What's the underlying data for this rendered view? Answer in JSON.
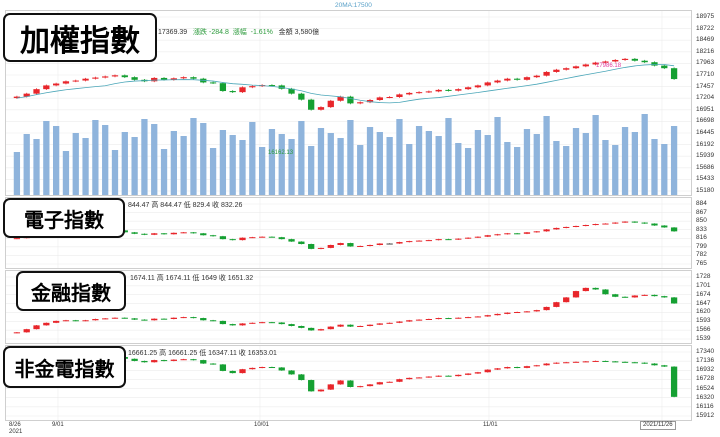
{
  "legend": "20MA:17500",
  "main": {
    "title": "加權指數",
    "info": {
      "close": "17369.39",
      "change_label": "漲跌",
      "change": "-284.8",
      "pct_label": "漲幅",
      "pct": "-1.61%",
      "vol_label": "金額",
      "vol": "3,580億"
    },
    "axis": [
      "18975",
      "18722",
      "18469",
      "18216",
      "17963",
      "17710",
      "17457",
      "17204",
      "16951",
      "16698",
      "16445",
      "16192",
      "15939",
      "15686",
      "15433",
      "15180"
    ],
    "max_label": "17986.18",
    "min_label": "16162.13"
  },
  "elec": {
    "title": "電子指數",
    "info": "844.47 高 844.47 低 829.4 收 832.26",
    "axis": [
      "884",
      "867",
      "850",
      "833",
      "816",
      "799",
      "782",
      "765"
    ]
  },
  "fin": {
    "title": "金融指數",
    "info": "1674.11 高 1674.11 低 1649 收 1651.32",
    "axis": [
      "1728",
      "1701",
      "1674",
      "1647",
      "1620",
      "1593",
      "1566",
      "1539"
    ]
  },
  "nonfe": {
    "title": "非金電指數",
    "info": "16661.25 高 16661.25 低 16347.11 收 16353.01",
    "axis": [
      "17340",
      "17136",
      "16932",
      "16728",
      "16524",
      "16320",
      "16116",
      "15912"
    ]
  },
  "xaxis": {
    "d1": "8/26",
    "y1": "2021",
    "d2": "9/01",
    "d3": "10/01",
    "d4": "11/01",
    "d5": "2021/11/26"
  },
  "colors": {
    "up": "#e8262b",
    "down": "#15a032",
    "flat": "#444444",
    "volume": "#8fb4dc",
    "ma": "#4aa6b8"
  },
  "chart_data": [
    {
      "type": "candlestick",
      "title": "加權指數",
      "ylim": [
        15180,
        18975
      ],
      "series": [
        {
          "name": "20MA",
          "values": [
            17500
          ]
        }
      ],
      "close": [
        16900,
        16980,
        17100,
        17200,
        17250,
        17310,
        17330,
        17380,
        17410,
        17440,
        17470,
        17420,
        17350,
        17310,
        17400,
        17350,
        17390,
        17420,
        17380,
        17280,
        17260,
        17050,
        17020,
        17150,
        17180,
        17210,
        17200,
        17110,
        16980,
        16820,
        16550,
        16620,
        16790,
        16900,
        16720,
        16750,
        16810,
        16880,
        16890,
        16960,
        17000,
        17020,
        17040,
        17080,
        17060,
        17100,
        17150,
        17200,
        17280,
        17330,
        17380,
        17350,
        17420,
        17460,
        17560,
        17620,
        17660,
        17710,
        17760,
        17810,
        17840,
        17880,
        17910,
        17860,
        17820,
        17730,
        17660,
        17370
      ],
      "annotations": [
        "17986.18",
        "16162.13"
      ]
    },
    {
      "type": "candlestick",
      "title": "電子指數",
      "ylim": [
        765,
        884
      ],
      "close": [
        818,
        820,
        822,
        824,
        826,
        828,
        830,
        831,
        832,
        833,
        834,
        830,
        827,
        825,
        828,
        826,
        829,
        830,
        828,
        824,
        822,
        816,
        814,
        819,
        820,
        821,
        820,
        816,
        811,
        806,
        796,
        798,
        804,
        808,
        801,
        802,
        804,
        807,
        807,
        810,
        812,
        813,
        814,
        816,
        815,
        817,
        819,
        821,
        824,
        826,
        828,
        827,
        830,
        832,
        836,
        839,
        841,
        843,
        845,
        847,
        848,
        850,
        852,
        850,
        848,
        844,
        840,
        832
      ]
    },
    {
      "type": "candlestick",
      "title": "金融指數",
      "ylim": [
        1539,
        1728
      ],
      "close": [
        1560,
        1570,
        1582,
        1590,
        1596,
        1598,
        1596,
        1598,
        1602,
        1604,
        1606,
        1604,
        1600,
        1598,
        1603,
        1602,
        1606,
        1608,
        1605,
        1598,
        1596,
        1586,
        1582,
        1588,
        1590,
        1592,
        1591,
        1586,
        1580,
        1574,
        1566,
        1570,
        1578,
        1584,
        1578,
        1580,
        1584,
        1588,
        1590,
        1594,
        1598,
        1600,
        1602,
        1605,
        1604,
        1606,
        1608,
        1610,
        1614,
        1618,
        1622,
        1624,
        1626,
        1630,
        1640,
        1655,
        1670,
        1690,
        1700,
        1695,
        1680,
        1672,
        1670,
        1676,
        1678,
        1674,
        1670,
        1651
      ]
    },
    {
      "type": "candlestick",
      "title": "非金電指數",
      "ylim": [
        15912,
        17340
      ],
      "close": [
        16920,
        16980,
        17040,
        17100,
        17150,
        17190,
        17210,
        17240,
        17250,
        17260,
        17270,
        17230,
        17180,
        17150,
        17200,
        17180,
        17210,
        17220,
        17200,
        17120,
        17100,
        16950,
        16900,
        16990,
        17020,
        17040,
        17030,
        16960,
        16870,
        16740,
        16480,
        16520,
        16640,
        16730,
        16580,
        16600,
        16640,
        16690,
        16700,
        16760,
        16790,
        16800,
        16820,
        16840,
        16830,
        16860,
        16890,
        16920,
        16980,
        17010,
        17040,
        17020,
        17060,
        17080,
        17120,
        17140,
        17150,
        17160,
        17170,
        17180,
        17170,
        17160,
        17150,
        17140,
        17120,
        17080,
        17050,
        16353
      ]
    }
  ]
}
